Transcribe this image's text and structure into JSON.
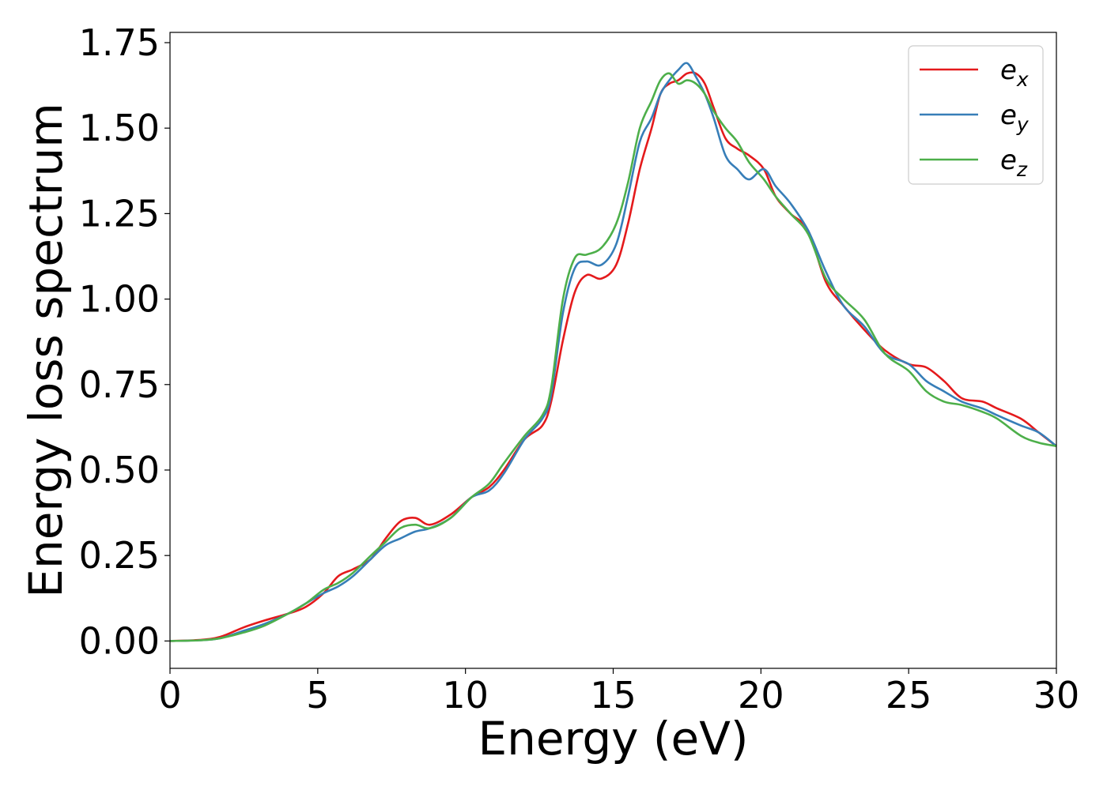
{
  "chart_data": {
    "type": "line",
    "xlabel": "Energy (eV)",
    "ylabel": "Energy loss spectrum",
    "xlim": [
      0,
      30
    ],
    "ylim": [
      -0.08,
      1.78
    ],
    "xticks": [
      0,
      5,
      10,
      15,
      20,
      25,
      30
    ],
    "yticks": [
      0.0,
      0.25,
      0.5,
      0.75,
      1.0,
      1.25,
      1.5,
      1.75
    ],
    "xtick_labels": [
      "0",
      "5",
      "10",
      "15",
      "20",
      "25",
      "30"
    ],
    "ytick_labels": [
      "0.00",
      "0.25",
      "0.50",
      "0.75",
      "1.00",
      "1.25",
      "1.50",
      "1.75"
    ],
    "grid": false,
    "legend_position": "top-right",
    "series": [
      {
        "name": "e",
        "subscript": "x",
        "color": "#e41a1c",
        "x": [
          0,
          1,
          1.7,
          2.5,
          3.2,
          4,
          4.6,
          5.2,
          5.7,
          6.2,
          6.8,
          7.3,
          7.8,
          8.3,
          8.8,
          9.5,
          10.2,
          10.8,
          11.3,
          12,
          12.6,
          12.9,
          13.3,
          13.7,
          14.1,
          14.6,
          15.1,
          15.5,
          15.9,
          16.3,
          16.6,
          16.9,
          17.2,
          17.5,
          17.8,
          18.1,
          18.4,
          18.8,
          19.2,
          19.6,
          20.1,
          20.5,
          21,
          21.6,
          22.2,
          22.8,
          23.5,
          24.2,
          25,
          25.6,
          26.2,
          26.8,
          27.5,
          28,
          28.8,
          29.4,
          30
        ],
        "y": [
          0.0,
          0.003,
          0.012,
          0.04,
          0.06,
          0.08,
          0.1,
          0.14,
          0.19,
          0.21,
          0.24,
          0.3,
          0.35,
          0.36,
          0.34,
          0.37,
          0.42,
          0.45,
          0.5,
          0.59,
          0.63,
          0.7,
          0.88,
          1.02,
          1.07,
          1.06,
          1.1,
          1.22,
          1.38,
          1.5,
          1.6,
          1.63,
          1.64,
          1.66,
          1.66,
          1.63,
          1.56,
          1.47,
          1.44,
          1.42,
          1.38,
          1.3,
          1.25,
          1.2,
          1.05,
          0.98,
          0.91,
          0.85,
          0.81,
          0.8,
          0.76,
          0.71,
          0.7,
          0.68,
          0.65,
          0.61,
          0.57
        ]
      },
      {
        "name": "e",
        "subscript": "y",
        "color": "#377eb8",
        "x": [
          0,
          1,
          1.7,
          2.5,
          3.2,
          4,
          4.6,
          5.2,
          5.7,
          6.2,
          6.8,
          7.3,
          7.8,
          8.3,
          8.8,
          9.5,
          10.2,
          10.8,
          11.3,
          12,
          12.6,
          12.9,
          13.3,
          13.7,
          14.1,
          14.6,
          15.1,
          15.5,
          15.9,
          16.3,
          16.6,
          16.9,
          17.2,
          17.5,
          17.8,
          18.1,
          18.4,
          18.8,
          19.2,
          19.6,
          20.1,
          20.5,
          21,
          21.6,
          22.2,
          22.8,
          23.5,
          24.2,
          25,
          25.6,
          26.2,
          26.8,
          27.5,
          28,
          28.8,
          29.4,
          30
        ],
        "y": [
          0.0,
          0.002,
          0.008,
          0.03,
          0.05,
          0.08,
          0.11,
          0.14,
          0.16,
          0.19,
          0.24,
          0.28,
          0.3,
          0.32,
          0.33,
          0.36,
          0.42,
          0.44,
          0.49,
          0.59,
          0.65,
          0.72,
          0.96,
          1.09,
          1.11,
          1.1,
          1.16,
          1.3,
          1.46,
          1.53,
          1.6,
          1.64,
          1.67,
          1.69,
          1.65,
          1.6,
          1.53,
          1.42,
          1.38,
          1.35,
          1.38,
          1.33,
          1.28,
          1.2,
          1.08,
          0.98,
          0.92,
          0.84,
          0.81,
          0.76,
          0.73,
          0.7,
          0.68,
          0.66,
          0.63,
          0.61,
          0.57
        ]
      },
      {
        "name": "e",
        "subscript": "z",
        "color": "#4daf4a",
        "x": [
          0,
          1,
          1.7,
          2.5,
          3.2,
          4,
          4.6,
          5.2,
          5.7,
          6.2,
          6.8,
          7.3,
          7.8,
          8.3,
          8.8,
          9.5,
          10.2,
          10.8,
          11.3,
          12,
          12.6,
          12.9,
          13.3,
          13.7,
          14.1,
          14.6,
          15.1,
          15.5,
          15.9,
          16.3,
          16.6,
          16.9,
          17.2,
          17.5,
          17.8,
          18.1,
          18.4,
          18.8,
          19.2,
          19.6,
          20.1,
          20.5,
          21,
          21.6,
          22.2,
          22.8,
          23.5,
          24.2,
          25,
          25.6,
          26.2,
          26.8,
          27.5,
          28,
          28.8,
          29.4,
          30
        ],
        "y": [
          0.0,
          0.002,
          0.008,
          0.025,
          0.045,
          0.08,
          0.11,
          0.15,
          0.17,
          0.2,
          0.25,
          0.29,
          0.33,
          0.34,
          0.33,
          0.36,
          0.42,
          0.46,
          0.52,
          0.6,
          0.66,
          0.74,
          1.0,
          1.12,
          1.13,
          1.15,
          1.22,
          1.34,
          1.5,
          1.58,
          1.64,
          1.66,
          1.63,
          1.64,
          1.63,
          1.6,
          1.55,
          1.5,
          1.46,
          1.4,
          1.35,
          1.3,
          1.25,
          1.19,
          1.06,
          1.0,
          0.94,
          0.84,
          0.79,
          0.73,
          0.7,
          0.69,
          0.67,
          0.65,
          0.6,
          0.58,
          0.57
        ]
      }
    ]
  }
}
